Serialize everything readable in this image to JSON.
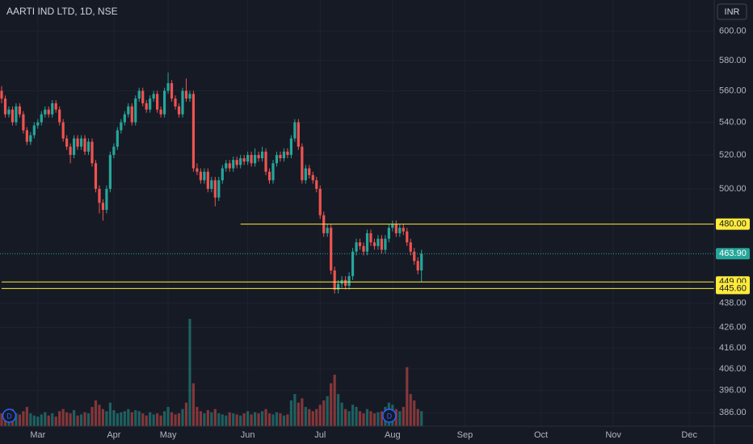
{
  "chart_data": {
    "type": "candlestick",
    "title": "AARTI IND LTD, 1D, NSE",
    "currency": "INR",
    "log_scale": true,
    "grid": true,
    "up_color": "#26a69a",
    "down_color": "#ef5350",
    "ylim": [
      380,
      622
    ],
    "yticks": [
      {
        "value": 600,
        "label": "600.00"
      },
      {
        "value": 580,
        "label": "580.00"
      },
      {
        "value": 560,
        "label": "560.00"
      },
      {
        "value": 540,
        "label": "540.00"
      },
      {
        "value": 520,
        "label": "520.00"
      },
      {
        "value": 500,
        "label": "500.00"
      },
      {
        "value": 438,
        "label": "438.00"
      },
      {
        "value": 426,
        "label": "426.00"
      },
      {
        "value": 416,
        "label": "416.00"
      },
      {
        "value": 406,
        "label": "406.00"
      },
      {
        "value": 396,
        "label": "396.00"
      },
      {
        "value": 386,
        "label": "386.00"
      }
    ],
    "xticks": [
      {
        "value": 10,
        "label": "Mar"
      },
      {
        "value": 31,
        "label": "Apr"
      },
      {
        "value": 46,
        "label": "May"
      },
      {
        "value": 68,
        "label": "Jun"
      },
      {
        "value": 88,
        "label": "Jul"
      },
      {
        "value": 108,
        "label": "Aug"
      },
      {
        "value": 128,
        "label": "Sep"
      },
      {
        "value": 149,
        "label": "Oct"
      },
      {
        "value": 169,
        "label": "Nov"
      },
      {
        "value": 190,
        "label": "Dec"
      }
    ],
    "last_price": {
      "value": 463.9,
      "label": "463.90",
      "color": "#26a69a"
    },
    "levels": [
      {
        "value": 480,
        "label": "480.00",
        "start": 66,
        "color": "#ffeb3b"
      },
      {
        "value": 449,
        "label": "449.00",
        "start": 0,
        "color": "#ffeb3b"
      },
      {
        "value": 445.6,
        "label": "445.60",
        "start": 0,
        "color": "#ffeb3b"
      }
    ],
    "events": [
      {
        "index": 1,
        "label": "D"
      },
      {
        "index": 106,
        "label": "D"
      }
    ],
    "candles": [
      [
        560,
        563,
        552,
        555
      ],
      [
        555,
        557,
        543,
        545
      ],
      [
        545,
        550,
        543,
        548
      ],
      [
        548,
        550,
        538,
        540
      ],
      [
        540,
        552,
        538,
        550
      ],
      [
        550,
        552,
        543,
        545
      ],
      [
        545,
        547,
        533,
        535
      ],
      [
        535,
        537,
        526,
        528
      ],
      [
        528,
        534,
        526,
        532
      ],
      [
        532,
        540,
        530,
        538
      ],
      [
        538,
        542,
        536,
        540
      ],
      [
        540,
        547,
        538,
        545
      ],
      [
        545,
        550,
        543,
        548
      ],
      [
        548,
        550,
        543,
        545
      ],
      [
        545,
        554,
        543,
        552
      ],
      [
        552,
        554,
        546,
        548
      ],
      [
        548,
        550,
        538,
        540
      ],
      [
        540,
        542,
        528,
        530
      ],
      [
        530,
        532,
        523,
        525
      ],
      [
        525,
        527,
        515,
        520
      ],
      [
        520,
        532,
        518,
        530
      ],
      [
        530,
        532,
        523,
        525
      ],
      [
        525,
        532,
        523,
        530
      ],
      [
        530,
        532,
        520,
        522
      ],
      [
        522,
        530,
        520,
        528
      ],
      [
        528,
        530,
        513,
        515
      ],
      [
        515,
        517,
        498,
        500
      ],
      [
        500,
        502,
        486,
        492
      ],
      [
        492,
        494,
        482,
        488
      ],
      [
        488,
        502,
        486,
        500
      ],
      [
        500,
        522,
        498,
        520
      ],
      [
        520,
        527,
        518,
        525
      ],
      [
        525,
        537,
        523,
        535
      ],
      [
        535,
        542,
        533,
        540
      ],
      [
        540,
        547,
        538,
        545
      ],
      [
        545,
        552,
        543,
        550
      ],
      [
        550,
        552,
        538,
        540
      ],
      [
        540,
        557,
        538,
        555
      ],
      [
        555,
        562,
        553,
        560
      ],
      [
        560,
        562,
        550,
        552
      ],
      [
        552,
        554,
        546,
        548
      ],
      [
        548,
        557,
        546,
        555
      ],
      [
        555,
        560,
        553,
        558
      ],
      [
        558,
        560,
        546,
        548
      ],
      [
        548,
        550,
        543,
        545
      ],
      [
        545,
        562,
        543,
        560
      ],
      [
        560,
        572,
        558,
        565
      ],
      [
        565,
        567,
        553,
        555
      ],
      [
        555,
        557,
        548,
        550
      ],
      [
        550,
        552,
        543,
        545
      ],
      [
        545,
        562,
        543,
        560
      ],
      [
        560,
        568,
        553,
        555
      ],
      [
        555,
        560,
        553,
        558
      ],
      [
        558,
        560,
        510,
        512
      ],
      [
        512,
        515,
        508,
        510
      ],
      [
        510,
        512,
        503,
        505
      ],
      [
        505,
        512,
        503,
        510
      ],
      [
        510,
        512,
        498,
        500
      ],
      [
        500,
        507,
        498,
        505
      ],
      [
        505,
        507,
        490,
        495
      ],
      [
        495,
        507,
        493,
        505
      ],
      [
        505,
        514,
        503,
        512
      ],
      [
        512,
        517,
        510,
        515
      ],
      [
        515,
        517,
        510,
        512
      ],
      [
        512,
        519,
        510,
        517
      ],
      [
        517,
        519,
        512,
        514
      ],
      [
        514,
        520,
        512,
        518
      ],
      [
        518,
        520,
        514,
        516
      ],
      [
        516,
        522,
        514,
        520
      ],
      [
        520,
        522,
        513,
        515
      ],
      [
        515,
        524,
        513,
        520
      ],
      [
        520,
        522,
        516,
        518
      ],
      [
        518,
        525,
        516,
        522
      ],
      [
        522,
        524,
        508,
        510
      ],
      [
        510,
        512,
        503,
        505
      ],
      [
        505,
        517,
        503,
        515
      ],
      [
        515,
        522,
        513,
        520
      ],
      [
        520,
        522,
        516,
        518
      ],
      [
        518,
        524,
        516,
        522
      ],
      [
        522,
        524,
        518,
        520
      ],
      [
        520,
        532,
        518,
        530
      ],
      [
        530,
        542,
        528,
        540
      ],
      [
        540,
        542,
        523,
        525
      ],
      [
        525,
        527,
        503,
        505
      ],
      [
        505,
        514,
        503,
        512
      ],
      [
        512,
        514,
        506,
        508
      ],
      [
        508,
        510,
        503,
        505
      ],
      [
        505,
        507,
        498,
        500
      ],
      [
        500,
        502,
        483,
        485
      ],
      [
        485,
        487,
        473,
        475
      ],
      [
        475,
        480,
        473,
        478
      ],
      [
        478,
        480,
        453,
        455
      ],
      [
        455,
        457,
        443,
        445
      ],
      [
        445,
        450,
        443,
        448
      ],
      [
        448,
        452,
        446,
        450
      ],
      [
        450,
        452,
        445,
        447
      ],
      [
        447,
        454,
        445,
        452
      ],
      [
        452,
        467,
        450,
        465
      ],
      [
        465,
        472,
        463,
        470
      ],
      [
        470,
        472,
        466,
        468
      ],
      [
        468,
        470,
        463,
        465
      ],
      [
        465,
        477,
        463,
        475
      ],
      [
        475,
        477,
        468,
        470
      ],
      [
        470,
        472,
        466,
        468
      ],
      [
        468,
        474,
        466,
        472
      ],
      [
        472,
        474,
        464,
        466
      ],
      [
        466,
        474,
        464,
        472
      ],
      [
        472,
        480,
        470,
        478
      ],
      [
        478,
        482,
        476,
        480
      ],
      [
        480,
        482,
        473,
        475
      ],
      [
        475,
        480,
        473,
        478
      ],
      [
        478,
        480,
        474,
        476
      ],
      [
        476,
        478,
        468,
        470
      ],
      [
        470,
        472,
        463,
        465
      ],
      [
        465,
        467,
        458,
        460
      ],
      [
        460,
        462,
        453,
        455
      ],
      [
        455,
        466,
        449,
        463.9
      ]
    ],
    "volumes": [
      12,
      14,
      10,
      16,
      12,
      11,
      14,
      18,
      12,
      10,
      9,
      11,
      13,
      10,
      12,
      9,
      14,
      16,
      13,
      12,
      15,
      10,
      11,
      13,
      12,
      18,
      24,
      20,
      16,
      14,
      22,
      15,
      12,
      13,
      14,
      16,
      13,
      15,
      14,
      12,
      10,
      13,
      11,
      12,
      10,
      14,
      18,
      13,
      11,
      12,
      16,
      22,
      100,
      40,
      18,
      14,
      12,
      15,
      13,
      16,
      12,
      11,
      10,
      13,
      12,
      11,
      10,
      12,
      14,
      11,
      13,
      12,
      14,
      16,
      12,
      11,
      13,
      12,
      10,
      11,
      24,
      30,
      22,
      26,
      18,
      16,
      14,
      16,
      20,
      24,
      28,
      40,
      48,
      30,
      22,
      16,
      14,
      20,
      18,
      14,
      12,
      16,
      14,
      12,
      13,
      14,
      18,
      22,
      20,
      16,
      14,
      18,
      55,
      30,
      24,
      16,
      14
    ]
  }
}
